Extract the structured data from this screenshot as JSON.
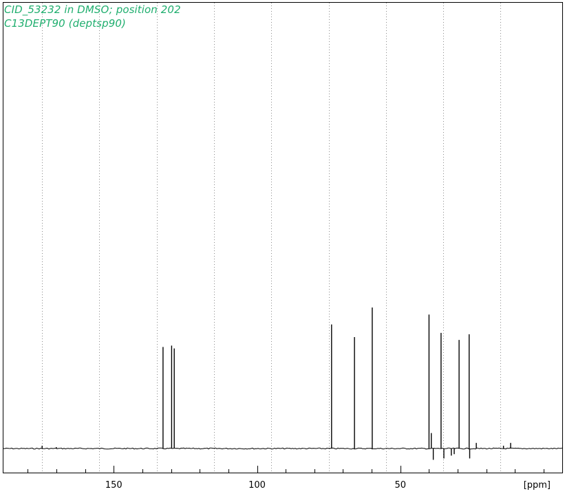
{
  "header": {
    "title_line1": "CID_53232 in DMSO; position 202",
    "title_line2": "C13DEPT90 (deptsp90)"
  },
  "colors": {
    "title": "#1fae6e",
    "spectrum": "#000000",
    "grid": "#888888",
    "frame": "#000000"
  },
  "chart_data": {
    "type": "line",
    "title": "CID_53232 in DMSO; position 202",
    "subtitle": "C13DEPT90 (deptsp90)",
    "xlabel": "[ppm]",
    "ylabel": "",
    "x_reversed": true,
    "xlim": [
      188.5,
      -6.5
    ],
    "ylim": [
      -0.12,
      1.0
    ],
    "grid": {
      "vertical": true,
      "style": "dotted",
      "positions": [
        175,
        155,
        135,
        115,
        95,
        75,
        55,
        35,
        15
      ]
    },
    "x_ticks": {
      "major": [
        150,
        100,
        50
      ],
      "minor": [
        180,
        170,
        160,
        140,
        130,
        120,
        110,
        90,
        80,
        70,
        60,
        40,
        30,
        20,
        10,
        0
      ],
      "labels": [
        "150",
        "100",
        "50"
      ]
    },
    "peaks": [
      {
        "ppm": 132.8,
        "height": 0.72
      },
      {
        "ppm": 129.8,
        "height": 0.73
      },
      {
        "ppm": 128.9,
        "height": 0.71
      },
      {
        "ppm": 74.0,
        "height": 0.88
      },
      {
        "ppm": 66.0,
        "height": 0.79
      },
      {
        "ppm": 59.8,
        "height": 1.0
      },
      {
        "ppm": 40.0,
        "height": 0.95
      },
      {
        "ppm": 39.2,
        "height": 0.11
      },
      {
        "ppm": 38.5,
        "height": -0.08
      },
      {
        "ppm": 35.8,
        "height": 0.82
      },
      {
        "ppm": 34.8,
        "height": -0.07
      },
      {
        "ppm": 32.2,
        "height": -0.05
      },
      {
        "ppm": 31.2,
        "height": -0.04
      },
      {
        "ppm": 29.5,
        "height": 0.77
      },
      {
        "ppm": 26.0,
        "height": 0.81
      },
      {
        "ppm": 25.8,
        "height": -0.07
      },
      {
        "ppm": 23.5,
        "height": 0.04
      },
      {
        "ppm": 14.0,
        "height": 0.02
      },
      {
        "ppm": 11.5,
        "height": 0.04
      },
      {
        "ppm": 175.0,
        "height": 0.02
      },
      {
        "ppm": 170.0,
        "height": 0.01
      }
    ]
  }
}
